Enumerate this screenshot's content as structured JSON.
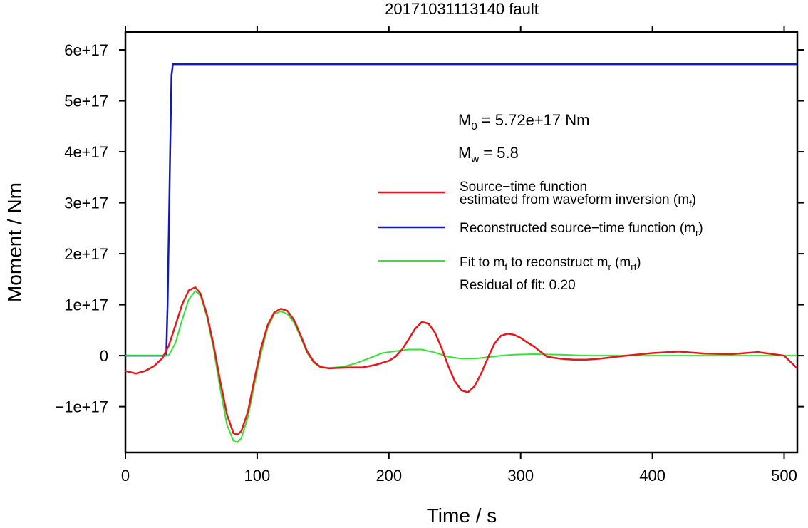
{
  "chart_data": {
    "type": "line",
    "title": "20171031113140 fault",
    "xlabel": "Time / s",
    "ylabel": "Moment / Nm",
    "xlim": [
      0,
      510
    ],
    "ylim": [
      -1.9e+17,
      6.35e+17
    ],
    "xticks": [
      0,
      100,
      200,
      300,
      400,
      500
    ],
    "xtick_labels": [
      "0",
      "100",
      "200",
      "300",
      "400",
      "500"
    ],
    "yticks": [
      -1e+17,
      0,
      1e+17,
      2e+17,
      3e+17,
      4e+17,
      5e+17,
      6e+17
    ],
    "ytick_labels": [
      "−1e+17",
      "0",
      "1e+17",
      "2e+17",
      "3e+17",
      "4e+17",
      "5e+17",
      "6e+17"
    ],
    "grid": false,
    "legend_position": "right",
    "annotations": {
      "m0": {
        "symbol": "M",
        "sub": "0",
        "text": " = 5.72e+17 Nm"
      },
      "mw": {
        "symbol": "M",
        "sub": "w",
        "text": " = 5.8"
      },
      "residual": "Residual of fit: 0.20"
    },
    "series": [
      {
        "name": "Source−time function estimated from waveform inversion (m_f)",
        "legend_line1": "Source−time function",
        "legend_line2": "estimated from waveform inversion (m",
        "legend_sub": "f",
        "legend_tail": ")",
        "color": "#e8171b",
        "x": [
          0,
          8,
          15,
          22,
          28,
          33,
          38,
          43,
          48,
          53,
          57,
          62,
          67,
          72,
          77,
          82,
          85,
          88,
          93,
          98,
          103,
          108,
          113,
          118,
          123,
          128,
          133,
          138,
          143,
          148,
          155,
          162,
          170,
          180,
          190,
          200,
          205,
          210,
          215,
          220,
          225,
          230,
          235,
          240,
          245,
          250,
          255,
          260,
          265,
          270,
          275,
          280,
          285,
          290,
          295,
          300,
          305,
          310,
          315,
          320,
          330,
          340,
          350,
          360,
          380,
          400,
          420,
          440,
          460,
          480,
          500,
          510
        ],
        "y": [
          -3e+16,
          -3.5e+16,
          -3e+16,
          -2e+16,
          -5000000000000000.0,
          2e+16,
          6e+16,
          1e+17,
          1.28e+17,
          1.34e+17,
          1.22e+17,
          8e+16,
          2e+16,
          -5e+16,
          -1.15e+17,
          -1.52e+17,
          -1.55e+17,
          -1.48e+17,
          -1.1e+17,
          -4.5e+16,
          1.5e+16,
          6e+16,
          8.5e+16,
          9.2e+16,
          8.8e+16,
          7e+16,
          4e+16,
          8000000000000000.0,
          -1.2e+16,
          -2.2e+16,
          -2.5e+16,
          -2.4e+16,
          -2.3e+16,
          -2.3e+16,
          -1.8e+16,
          -1e+16,
          -2000000000000000.0,
          1.2e+16,
          3.2e+16,
          5.3e+16,
          6.6e+16,
          6.3e+16,
          4.5e+16,
          1.5e+16,
          -2e+16,
          -5e+16,
          -6.8e+16,
          -7.2e+16,
          -6e+16,
          -3.5e+16,
          -5000000000000000.0,
          2.3e+16,
          3.9e+16,
          4.3e+16,
          4.1e+16,
          3.5e+16,
          2.6e+16,
          1.8e+16,
          8000000000000000.0,
          -2000000000000000.0,
          -6000000000000000.0,
          -8000000000000000.0,
          -8000000000000000.0,
          -6000000000000000.0,
          0,
          5000000000000000.0,
          8000000000000000.0,
          4000000000000000.0,
          3000000000000000.0,
          7000000000000000.0,
          0,
          -2.5e+16
        ]
      },
      {
        "name": "Reconstructed source−time function (m_r)",
        "legend_line1": "Reconstructed source−time function (m",
        "legend_sub": "r",
        "legend_tail": ")",
        "color": "#1119b8",
        "x": [
          0,
          31,
          32,
          33,
          34,
          35,
          36,
          510
        ],
        "y": [
          0,
          0,
          1e+17,
          2.5e+17,
          4.1e+17,
          5.5e+17,
          5.72e+17,
          5.72e+17
        ]
      },
      {
        "name": "Fit to m_f to reconstruct m_r (m_rf)",
        "legend_pre": "Fit to m",
        "legend_sub1": "f",
        "legend_mid": " to reconstruct m",
        "legend_sub2": "r",
        "legend_mid2": " (m",
        "legend_sub3": "rf",
        "legend_tail": ")",
        "color": "#2ee82e",
        "x": [
          0,
          20,
          28,
          33,
          38,
          43,
          48,
          53,
          57,
          62,
          67,
          72,
          77,
          82,
          85,
          88,
          93,
          98,
          103,
          108,
          113,
          118,
          123,
          128,
          133,
          138,
          143,
          148,
          155,
          165,
          175,
          185,
          195,
          205,
          215,
          225,
          235,
          245,
          255,
          265,
          275,
          285,
          295,
          310,
          330,
          350,
          370,
          400,
          450,
          510
        ],
        "y": [
          0,
          0,
          0,
          1000000000000000.0,
          2.5e+16,
          7e+16,
          1.1e+17,
          1.27e+17,
          1.18e+17,
          7.5e+16,
          1.2e+16,
          -6.5e+16,
          -1.35e+17,
          -1.67e+17,
          -1.7e+17,
          -1.62e+17,
          -1.2e+17,
          -5.5e+16,
          5000000000000000.0,
          5.5e+16,
          8.2e+16,
          8.7e+16,
          8.2e+16,
          6.5e+16,
          3.6e+16,
          5000000000000000.0,
          -1.4e+16,
          -2.3e+16,
          -2.4e+16,
          -2.2e+16,
          -1.5e+16,
          -5000000000000000.0,
          5000000000000000.0,
          9000000000000000.0,
          1.2e+16,
          1.2e+16,
          6000000000000000.0,
          -2000000000000000.0,
          -6000000000000000.0,
          -6000000000000000.0,
          -3000000000000000.0,
          0,
          2000000000000000.0,
          3000000000000000.0,
          2000000000000000.0,
          0,
          0,
          0,
          0,
          0
        ]
      }
    ]
  }
}
